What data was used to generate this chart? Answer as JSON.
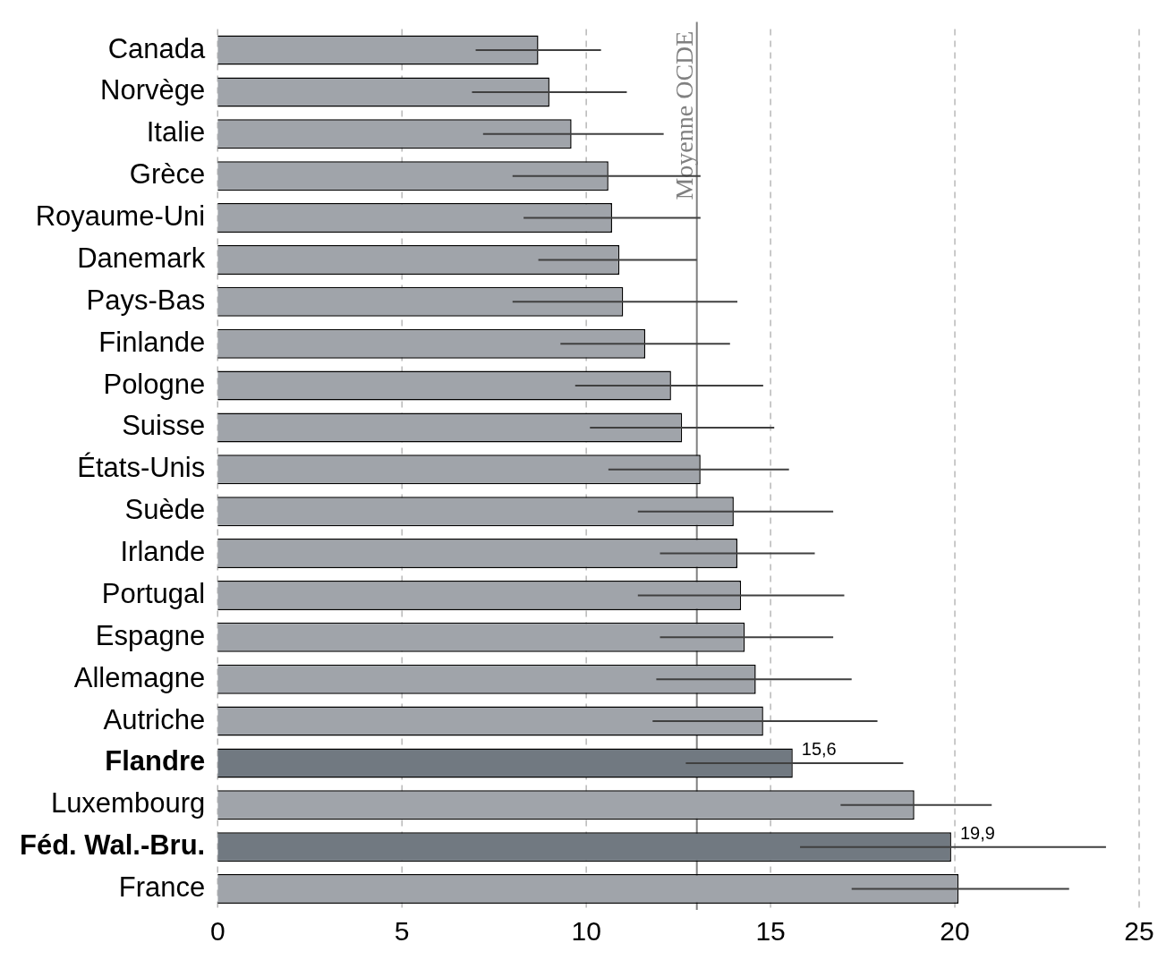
{
  "chart_data": {
    "type": "bar",
    "orientation": "horizontal",
    "categories": [
      "Canada",
      "Norvège",
      "Italie",
      "Grèce",
      "Royaume-Uni",
      "Danemark",
      "Pays-Bas",
      "Finlande",
      "Pologne",
      "Suisse",
      "États-Unis",
      "Suède",
      "Irlande",
      "Portugal",
      "Espagne",
      "Allemagne",
      "Autriche",
      "Flandre",
      "Luxembourg",
      "Féd. Wal.-Bru.",
      "France"
    ],
    "values": [
      8.7,
      9.0,
      9.6,
      10.6,
      10.7,
      10.9,
      11.0,
      11.6,
      12.3,
      12.6,
      13.1,
      14.0,
      14.1,
      14.2,
      14.3,
      14.6,
      14.8,
      15.6,
      18.9,
      19.9,
      20.1
    ],
    "colors": [
      "#a0a4aa",
      "#a0a4aa",
      "#a0a4aa",
      "#a0a4aa",
      "#a0a4aa",
      "#a0a4aa",
      "#a0a4aa",
      "#a0a4aa",
      "#a0a4aa",
      "#a0a4aa",
      "#a0a4aa",
      "#a0a4aa",
      "#a0a4aa",
      "#a0a4aa",
      "#a0a4aa",
      "#a0a4aa",
      "#a0a4aa",
      "#717981",
      "#a0a4aa",
      "#717981",
      "#a0a4aa"
    ],
    "errors": [
      [
        7.0,
        10.4
      ],
      [
        6.9,
        11.1
      ],
      [
        7.2,
        12.1
      ],
      [
        8.0,
        13.1
      ],
      [
        8.3,
        13.1
      ],
      [
        8.7,
        13.0
      ],
      [
        8.0,
        14.1
      ],
      [
        9.3,
        13.9
      ],
      [
        9.7,
        14.8
      ],
      [
        10.1,
        15.1
      ],
      [
        10.6,
        15.5
      ],
      [
        11.4,
        16.7
      ],
      [
        12.0,
        16.2
      ],
      [
        11.4,
        17.0
      ],
      [
        12.0,
        16.7
      ],
      [
        11.9,
        17.2
      ],
      [
        11.8,
        17.9
      ],
      [
        12.7,
        18.6
      ],
      [
        16.9,
        21.0
      ],
      [
        15.8,
        24.1
      ],
      [
        17.2,
        23.1
      ]
    ],
    "value_labels": [
      null,
      null,
      null,
      null,
      null,
      null,
      null,
      null,
      null,
      null,
      null,
      null,
      null,
      null,
      null,
      null,
      null,
      "15,6",
      null,
      "19,9",
      null
    ],
    "xlim": [
      0,
      25
    ],
    "xticks": [
      0,
      5,
      10,
      15,
      20,
      25
    ],
    "ref_lines": [
      {
        "axis": "x",
        "value": 13,
        "label": "Moyenne OCDE",
        "color": "#808080"
      }
    ],
    "grid": "x",
    "legend": false
  }
}
